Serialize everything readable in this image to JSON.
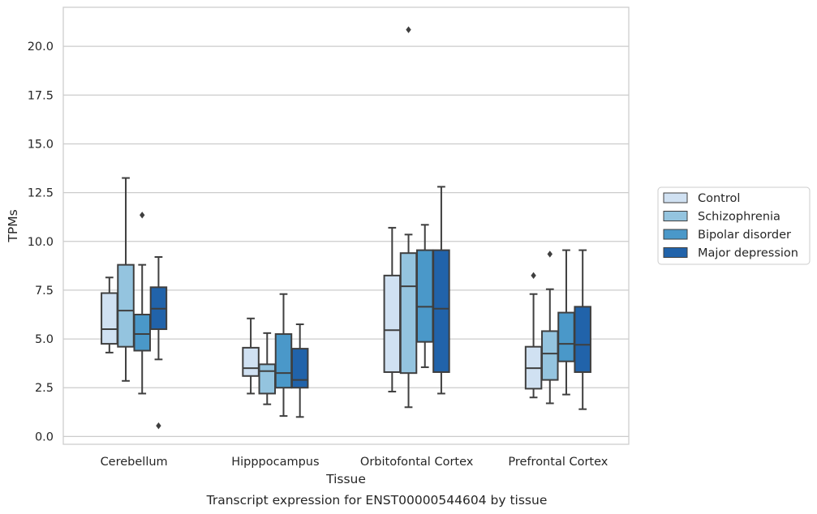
{
  "chart_data": {
    "type": "box",
    "title": "Transcript expression for ENST00000544604 by tissue",
    "xlabel": "Tissue",
    "ylabel": "TPMs",
    "ylim": [
      -0.4,
      22
    ],
    "yticks": [
      "0.0",
      "2.5",
      "5.0",
      "7.5",
      "10.0",
      "12.5",
      "15.0",
      "17.5",
      "20.0"
    ],
    "grid": true,
    "legend_position": "right",
    "categories": [
      "Cerebellum",
      "Hipppocampus",
      "Orbitofontal Cortex",
      "Prefrontal Cortex"
    ],
    "series": [
      {
        "name": "Control",
        "color": "#d0e1f2",
        "boxes": [
          {
            "whislo": 4.3,
            "q1": 4.75,
            "med": 5.5,
            "q3": 7.35,
            "whishi": 8.15,
            "fliers": []
          },
          {
            "whislo": 2.2,
            "q1": 3.1,
            "med": 3.5,
            "q3": 4.55,
            "whishi": 6.05,
            "fliers": []
          },
          {
            "whislo": 2.3,
            "q1": 3.3,
            "med": 5.45,
            "q3": 8.25,
            "whishi": 10.7,
            "fliers": []
          },
          {
            "whislo": 2.0,
            "q1": 2.45,
            "med": 3.5,
            "q3": 4.6,
            "whishi": 7.3,
            "fliers": [
              8.25
            ]
          }
        ]
      },
      {
        "name": "Schizophrenia",
        "color": "#94c4df",
        "boxes": [
          {
            "whislo": 2.85,
            "q1": 4.6,
            "med": 6.45,
            "q3": 8.8,
            "whishi": 13.25,
            "fliers": []
          },
          {
            "whislo": 1.65,
            "q1": 2.2,
            "med": 3.35,
            "q3": 3.7,
            "whishi": 5.3,
            "fliers": []
          },
          {
            "whislo": 1.5,
            "q1": 3.25,
            "med": 7.7,
            "q3": 9.4,
            "whishi": 10.35,
            "fliers": [
              20.85
            ]
          },
          {
            "whislo": 1.7,
            "q1": 2.9,
            "med": 4.25,
            "q3": 5.4,
            "whishi": 7.55,
            "fliers": [
              9.35
            ]
          }
        ]
      },
      {
        "name": "Bipolar disorder",
        "color": "#4a98c9",
        "boxes": [
          {
            "whislo": 2.2,
            "q1": 4.4,
            "med": 5.25,
            "q3": 6.25,
            "whishi": 8.8,
            "fliers": [
              11.35
            ]
          },
          {
            "whislo": 1.05,
            "q1": 2.5,
            "med": 3.25,
            "q3": 5.25,
            "whishi": 7.3,
            "fliers": []
          },
          {
            "whislo": 3.55,
            "q1": 4.85,
            "med": 6.65,
            "q3": 9.55,
            "whishi": 10.85,
            "fliers": []
          },
          {
            "whislo": 2.15,
            "q1": 3.85,
            "med": 4.75,
            "q3": 6.35,
            "whishi": 9.55,
            "fliers": []
          }
        ]
      },
      {
        "name": "Major depression",
        "color": "#2163aa",
        "boxes": [
          {
            "whislo": 3.95,
            "q1": 5.5,
            "med": 6.55,
            "q3": 7.65,
            "whishi": 9.2,
            "fliers": [
              0.55
            ]
          },
          {
            "whislo": 1.0,
            "q1": 2.5,
            "med": 2.9,
            "q3": 4.5,
            "whishi": 5.75,
            "fliers": []
          },
          {
            "whislo": 2.2,
            "q1": 3.3,
            "med": 6.55,
            "q3": 9.55,
            "whishi": 12.8,
            "fliers": []
          },
          {
            "whislo": 1.4,
            "q1": 3.3,
            "med": 4.7,
            "q3": 6.65,
            "whishi": 9.55,
            "fliers": []
          }
        ]
      }
    ]
  }
}
